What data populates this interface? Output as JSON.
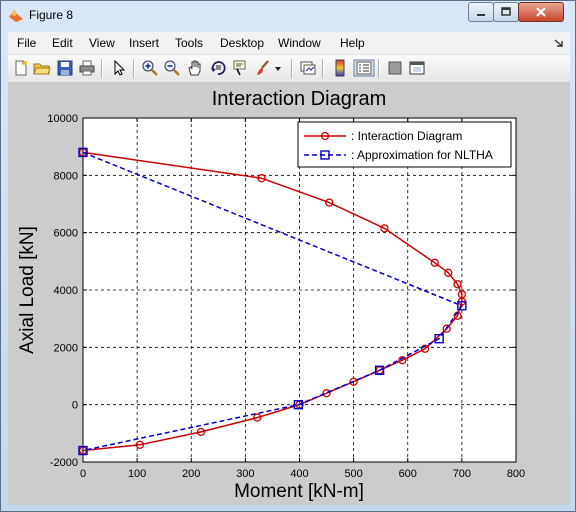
{
  "window": {
    "title": "Figure 8",
    "icon": "matlab-icon"
  },
  "menubar": {
    "items": [
      "File",
      "Edit",
      "View",
      "Insert",
      "Tools",
      "Desktop",
      "Window",
      "Help"
    ],
    "dock_icon": "dock-arrow-icon"
  },
  "toolbar": {
    "icons": [
      "new-figure-icon",
      "open-file-icon",
      "save-icon",
      "print-icon",
      "edit-plot-arrow-icon",
      "zoom-in-icon",
      "zoom-out-icon",
      "pan-hand-icon",
      "rotate-3d-icon",
      "data-cursor-icon",
      "brush-icon",
      "brush-dropdown-icon",
      "link-plot-icon",
      "insert-colorbar-icon",
      "insert-legend-icon",
      "hide-plot-tools-icon",
      "show-plot-tools-icon"
    ]
  },
  "chart_data": {
    "type": "line",
    "title": "Interaction Diagram",
    "xlabel": "Moment [kN-m]",
    "ylabel": "Axial Load [kN]",
    "xlim": [
      0,
      800
    ],
    "ylim": [
      -2000,
      10000
    ],
    "xticks": [
      0,
      100,
      200,
      300,
      400,
      500,
      600,
      700,
      800
    ],
    "yticks": [
      -2000,
      0,
      2000,
      4000,
      6000,
      8000,
      10000
    ],
    "grid": true,
    "legend_position": "top-right",
    "series": [
      {
        "name": ": Interaction Diagram",
        "color": "#cc0000",
        "line": "solid",
        "marker": "circle",
        "x": [
          0,
          330,
          455,
          557,
          650,
          675,
          692,
          700,
          700,
          692,
          672,
          632,
          590,
          548,
          500,
          450,
          400,
          322,
          218,
          105,
          0
        ],
        "y": [
          8800,
          7900,
          7050,
          6150,
          4950,
          4600,
          4200,
          3850,
          3600,
          3100,
          2650,
          1950,
          1550,
          1200,
          800,
          400,
          0,
          -450,
          -950,
          -1400,
          -1600
        ]
      },
      {
        "name": ": Approximation for NLTHA",
        "color": "#0000cc",
        "line": "dashed",
        "marker": "square",
        "x": [
          0,
          700,
          658,
          548,
          398,
          0
        ],
        "y": [
          8800,
          3450,
          2300,
          1200,
          0,
          -1600
        ]
      }
    ]
  }
}
